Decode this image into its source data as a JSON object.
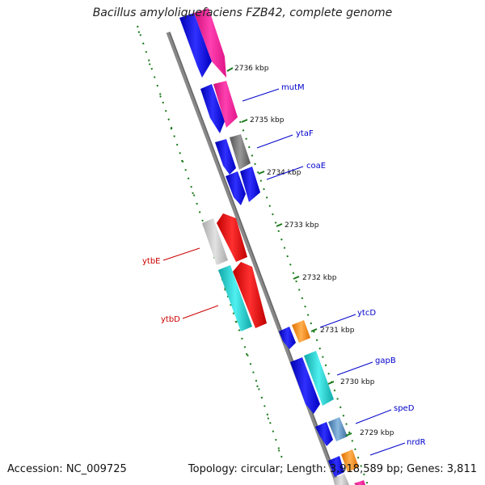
{
  "title": "Bacillus amyloliquefaciens FZB42, complete genome",
  "accession": "Accession: NC_009725",
  "summary": "Topology: circular; Length: 3,918,589 bp; Genes: 3,811",
  "colors": {
    "forward_label": "#0000cc",
    "reverse_label": "#cc0000",
    "backbone": "#888888",
    "tick": "#1a7a1a",
    "blue": "#1010e0",
    "pink": "#ff1aa0",
    "gray": "#777777",
    "light_gray": "#c8c8c8",
    "red": "#ee1111",
    "cyan": "#20d0d0",
    "orange": "#ff9020",
    "steel": "#5a8ec0"
  },
  "scale_labels": [
    "2736 kbp",
    "2735 kbp",
    "2734 kbp",
    "2733 kbp",
    "2732 kbp",
    "2731 kbp",
    "2730 kbp",
    "2729 kbp"
  ],
  "gene_labels": [
    {
      "name": "mutM",
      "strand": "forward"
    },
    {
      "name": "ytaF",
      "strand": "forward"
    },
    {
      "name": "coaE",
      "strand": "forward"
    },
    {
      "name": "ytbE",
      "strand": "reverse"
    },
    {
      "name": "ytbD",
      "strand": "reverse"
    },
    {
      "name": "ytcD",
      "strand": "forward"
    },
    {
      "name": "gapB",
      "strand": "forward"
    },
    {
      "name": "speD",
      "strand": "forward"
    },
    {
      "name": "nrdR",
      "strand": "forward"
    }
  ]
}
